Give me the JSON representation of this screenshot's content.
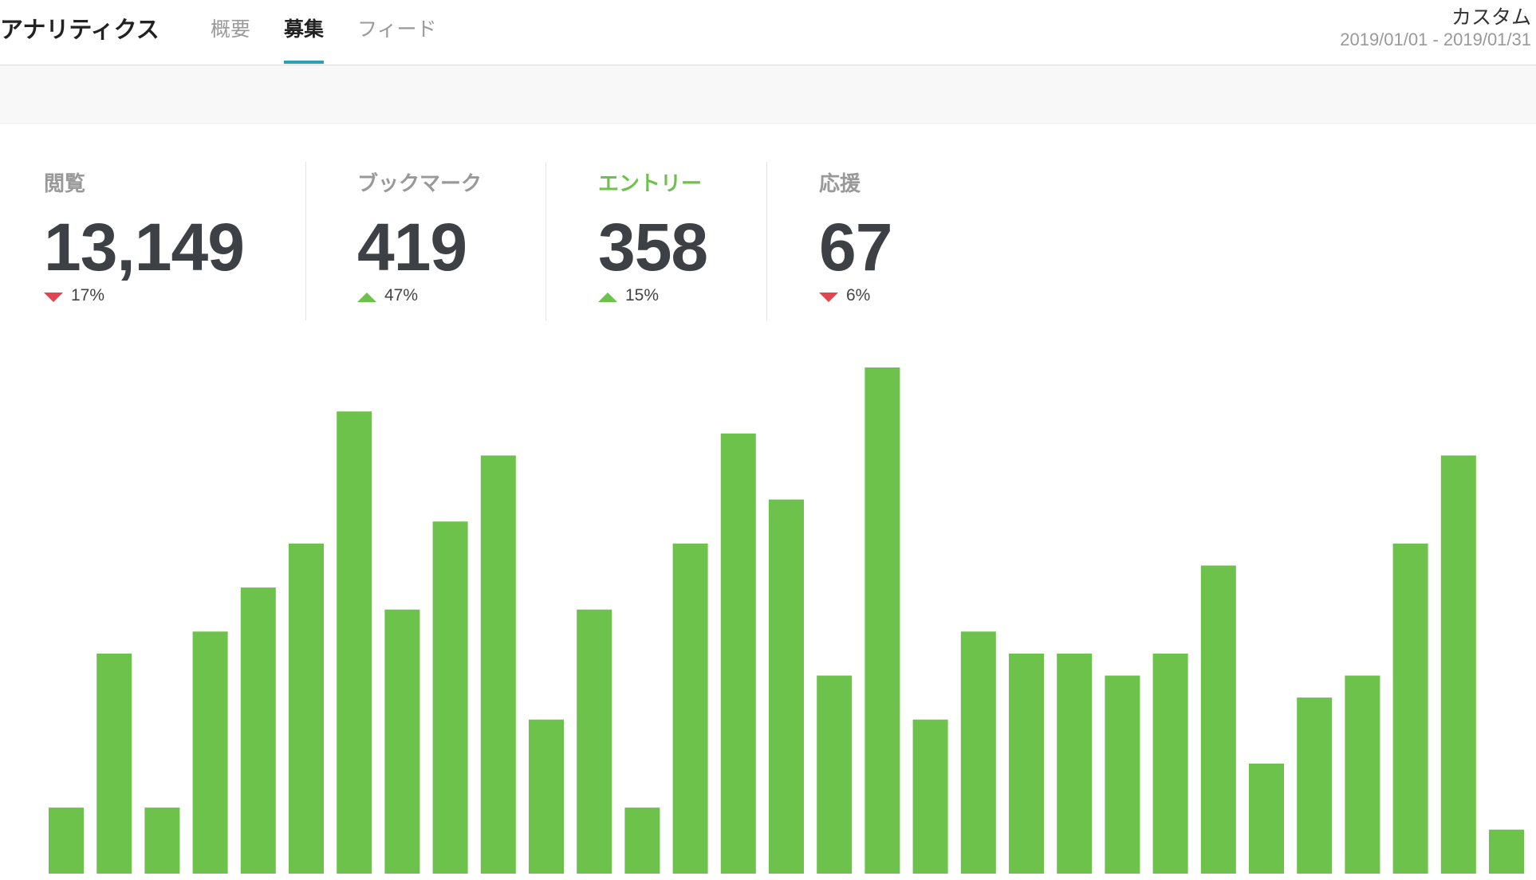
{
  "header": {
    "title": "アナリティクス",
    "tabs": [
      {
        "label": "概要",
        "active": false
      },
      {
        "label": "募集",
        "active": true
      },
      {
        "label": "フィード",
        "active": false
      }
    ],
    "range_name": "カスタム",
    "range_dates": "2019/01/01 - 2019/01/31"
  },
  "stats": [
    {
      "label": "閲覧",
      "value": "13,149",
      "change": "17%",
      "direction": "down",
      "selected": false
    },
    {
      "label": "ブックマーク",
      "value": "419",
      "change": "47%",
      "direction": "up",
      "selected": false
    },
    {
      "label": "エントリー",
      "value": "358",
      "change": "15%",
      "direction": "up",
      "selected": true
    },
    {
      "label": "応援",
      "value": "67",
      "change": "6%",
      "direction": "down",
      "selected": false
    }
  ],
  "chart_data": {
    "type": "bar",
    "color": "#6cc24a",
    "values": [
      3,
      10,
      3,
      11,
      13,
      15,
      21,
      12,
      16,
      19,
      7,
      12,
      3,
      15,
      20,
      17,
      9,
      23,
      7,
      11,
      10,
      10,
      9,
      10,
      14,
      5,
      8,
      9,
      15,
      19,
      2
    ]
  }
}
